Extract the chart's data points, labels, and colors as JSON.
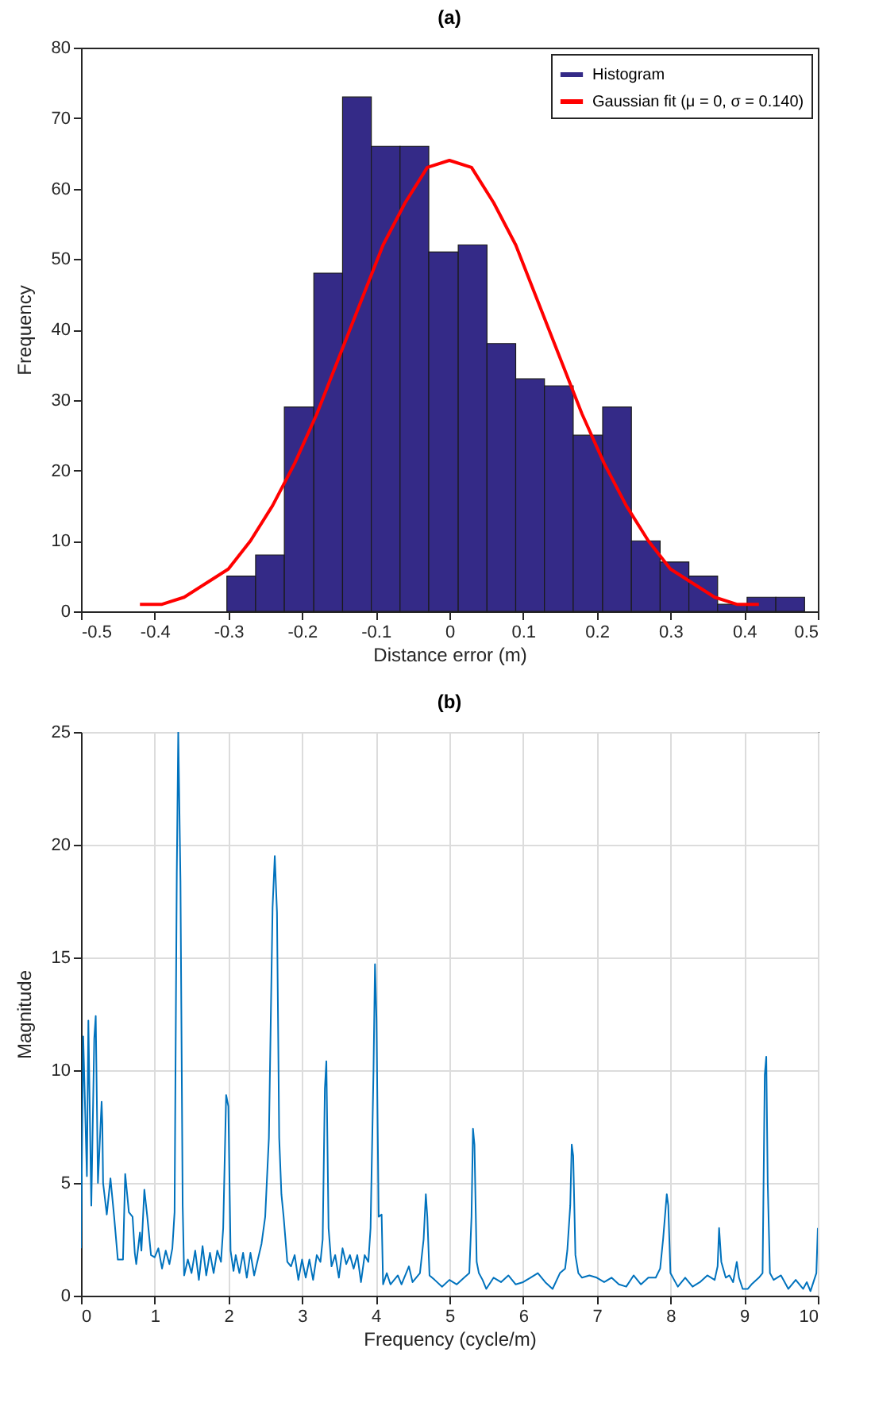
{
  "chart_data": [
    {
      "type": "histogram",
      "title": "(a)",
      "xlabel": "Distance error (m)",
      "ylabel": "Frequency",
      "legend": "top right",
      "grid": false,
      "bins": [
        -0.302,
        -0.263,
        -0.224,
        -0.184,
        -0.145,
        -0.106,
        -0.067,
        -0.028,
        0.012,
        0.051,
        0.09,
        0.129,
        0.168,
        0.208,
        0.247,
        0.286,
        0.325,
        0.364,
        0.404,
        0.443,
        0.482
      ],
      "series": [
        {
          "name": "Histogram",
          "type": "histogram",
          "color": "#342a87",
          "values": [
            5,
            8,
            29,
            48,
            73,
            66,
            66,
            51,
            52,
            38,
            33,
            32,
            25,
            29,
            10,
            7,
            5,
            1,
            2,
            2
          ]
        },
        {
          "name": "Gaussian fit (μ = 0, σ = 0.140)",
          "type": "line",
          "color": "#ff0000",
          "x": [
            -0.42,
            -0.39,
            -0.36,
            -0.33,
            -0.3,
            -0.27,
            -0.24,
            -0.21,
            -0.18,
            -0.15,
            -0.12,
            -0.09,
            -0.06,
            -0.03,
            0,
            0.03,
            0.06,
            0.09,
            0.12,
            0.15,
            0.18,
            0.21,
            0.24,
            0.27,
            0.3,
            0.33,
            0.36,
            0.39,
            0.42
          ],
          "values": [
            1,
            1,
            2,
            4,
            6,
            10,
            15,
            21,
            28,
            36,
            44,
            52,
            58,
            63,
            64,
            63,
            58,
            52,
            44,
            36,
            28,
            21,
            15,
            10,
            6,
            4,
            2,
            1,
            1
          ]
        }
      ],
      "xlim": [
        -0.5,
        0.5
      ],
      "xticks": [
        -0.5,
        -0.4,
        -0.3,
        -0.2,
        -0.1,
        0,
        0.1,
        0.2,
        0.3,
        0.4,
        0.5
      ],
      "ylim": [
        0,
        80
      ],
      "yticks": [
        0,
        10,
        20,
        30,
        40,
        50,
        60,
        70,
        80
      ]
    },
    {
      "type": "line",
      "title": "(b)",
      "xlabel": "Frequency (cycle/m)",
      "ylabel": "Magnitude",
      "grid": true,
      "color": "#0072bd",
      "x": [
        0,
        0.03,
        0.08,
        0.1,
        0.14,
        0.18,
        0.2,
        0.23,
        0.28,
        0.29,
        0.3,
        0.35,
        0.4,
        0.45,
        0.5,
        0.57,
        0.6,
        0.65,
        0.7,
        0.73,
        0.75,
        0.8,
        0.82,
        0.86,
        0.9,
        0.95,
        1.0,
        1.05,
        1.1,
        1.15,
        1.2,
        1.24,
        1.27,
        1.3,
        1.32,
        1.35,
        1.38,
        1.4,
        1.45,
        1.5,
        1.55,
        1.6,
        1.65,
        1.7,
        1.75,
        1.8,
        1.85,
        1.9,
        1.93,
        1.97,
        2.0,
        2.03,
        2.07,
        2.1,
        2.15,
        2.2,
        2.25,
        2.3,
        2.35,
        2.4,
        2.45,
        2.5,
        2.55,
        2.6,
        2.63,
        2.66,
        2.69,
        2.72,
        2.75,
        2.8,
        2.85,
        2.9,
        2.95,
        3.0,
        3.05,
        3.1,
        3.15,
        3.2,
        3.25,
        3.28,
        3.31,
        3.33,
        3.36,
        3.4,
        3.45,
        3.5,
        3.55,
        3.6,
        3.65,
        3.7,
        3.75,
        3.8,
        3.85,
        3.9,
        3.93,
        3.97,
        3.99,
        4.01,
        4.04,
        4.08,
        4.1,
        4.15,
        4.2,
        4.3,
        4.35,
        4.45,
        4.5,
        4.6,
        4.65,
        4.68,
        4.7,
        4.73,
        4.8,
        4.9,
        5.0,
        5.1,
        5.2,
        5.27,
        5.3,
        5.32,
        5.34,
        5.37,
        5.4,
        5.45,
        5.5,
        5.6,
        5.7,
        5.8,
        5.9,
        6.0,
        6.1,
        6.2,
        6.3,
        6.4,
        6.5,
        6.57,
        6.6,
        6.64,
        6.66,
        6.68,
        6.71,
        6.75,
        6.8,
        6.9,
        7.0,
        7.1,
        7.2,
        7.3,
        7.4,
        7.5,
        7.6,
        7.7,
        7.8,
        7.86,
        7.9,
        7.95,
        7.97,
        8.0,
        8.05,
        8.1,
        8.2,
        8.3,
        8.4,
        8.5,
        8.6,
        8.64,
        8.66,
        8.69,
        8.75,
        8.8,
        8.85,
        8.9,
        8.93,
        8.98,
        9.05,
        9.1,
        9.2,
        9.25,
        9.28,
        9.3,
        9.32,
        9.35,
        9.4,
        9.5,
        9.6,
        9.7,
        9.8,
        9.85,
        9.9,
        9.95,
        9.98,
        10.0
      ],
      "values": [
        2.1,
        11.5,
        5.3,
        12.2,
        4.0,
        11.4,
        12.4,
        5,
        8.6,
        7.6,
        5,
        3.6,
        5.2,
        3.5,
        1.6,
        1.6,
        5.4,
        3.7,
        3.5,
        1.9,
        1.4,
        2.8,
        2,
        4.7,
        3.5,
        1.8,
        1.7,
        2.1,
        1.2,
        2,
        1.4,
        2.1,
        3.7,
        18.7,
        25,
        18.4,
        4,
        0.9,
        1.6,
        1.0,
        2.0,
        0.7,
        2.2,
        0.9,
        1.9,
        1.0,
        2.0,
        1.5,
        3.0,
        8.9,
        8.4,
        2.0,
        1.1,
        1.8,
        1.0,
        1.9,
        0.8,
        1.9,
        0.9,
        1.6,
        2.3,
        3.5,
        7,
        17.2,
        19.5,
        17,
        7,
        4.5,
        3.5,
        1.5,
        1.3,
        1.8,
        0.7,
        1.6,
        0.8,
        1.6,
        0.7,
        1.8,
        1.5,
        2.5,
        9.2,
        10.4,
        3.0,
        1.3,
        1.8,
        0.8,
        2.1,
        1.4,
        1.8,
        1.2,
        1.8,
        0.6,
        1.8,
        1.5,
        3,
        10,
        14.7,
        12.3,
        3.5,
        3.6,
        0.5,
        1.0,
        0.5,
        0.9,
        0.5,
        1.3,
        0.6,
        1.0,
        2.5,
        4.5,
        3.5,
        0.9,
        0.7,
        0.4,
        0.7,
        0.5,
        0.8,
        1.0,
        3.5,
        7.4,
        6.7,
        1.5,
        1.0,
        0.7,
        0.3,
        0.8,
        0.6,
        0.9,
        0.5,
        0.6,
        0.8,
        1.0,
        0.6,
        0.3,
        1.0,
        1.2,
        2,
        4,
        6.7,
        6.2,
        1.8,
        1.0,
        0.8,
        0.9,
        0.8,
        0.6,
        0.8,
        0.5,
        0.4,
        0.9,
        0.5,
        0.8,
        0.8,
        1.2,
        2.5,
        4.5,
        4.0,
        1.0,
        0.7,
        0.4,
        0.8,
        0.4,
        0.6,
        0.9,
        0.7,
        1.3,
        3.0,
        1.5,
        0.8,
        0.9,
        0.6,
        1.5,
        0.8,
        0.3,
        0.3,
        0.5,
        0.8,
        1.0,
        9.8,
        10.6,
        5,
        1.0,
        0.7,
        0.9,
        0.3,
        0.7,
        0.3,
        0.6,
        0.2,
        0.7,
        1.0,
        3.0
      ],
      "xlim": [
        0,
        10
      ],
      "xticks": [
        0,
        1,
        2,
        3,
        4,
        5,
        6,
        7,
        8,
        9,
        10
      ],
      "ylim": [
        0,
        25
      ],
      "yticks": [
        0,
        5,
        10,
        15,
        20,
        25
      ]
    }
  ]
}
